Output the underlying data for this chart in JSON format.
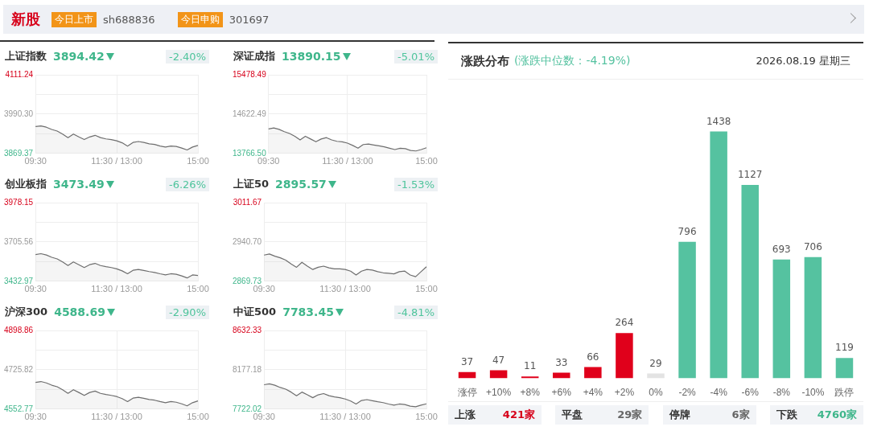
{
  "chart_data": [
    {
      "type": "other",
      "annotations": [
        "新股",
        "今日上市",
        "sh688836",
        "今日申购",
        "301697"
      ]
    },
    {
      "type": "area",
      "title": "上证指数",
      "subtitle": "3894.42",
      "annotations": [
        "-2.40%"
      ],
      "grid": true,
      "categories": [
        "09:30",
        null,
        null,
        null,
        null,
        null,
        null,
        null,
        null,
        null,
        null,
        null,
        null,
        null,
        null,
        "11:30 / 13:00",
        null,
        null,
        null,
        null,
        null,
        null,
        null,
        null,
        null,
        null,
        null,
        null,
        null,
        null,
        "15:00"
      ],
      "ylim": [
        3869.37,
        4111.24
      ],
      "yticks": [
        3869.37,
        {
          "value": 3929.84,
          "label": null
        },
        {
          "value": 3990.3,
          "label": "3990.30"
        },
        {
          "value": 4050.77,
          "label": null
        },
        4111.24
      ],
      "series": [
        {
          "color": "#6e6e6e",
          "values": [
            3952,
            3954,
            3950,
            3943,
            3938,
            3929,
            3918,
            3929,
            3920,
            3912,
            3920,
            3925,
            3918,
            3914,
            3912,
            3908,
            3902,
            3892,
            3903,
            3906,
            3903,
            3899,
            3897,
            3892,
            3889,
            3892,
            3891,
            3886,
            3880,
            3889,
            3894
          ]
        }
      ]
    },
    {
      "type": "area",
      "title": "深证成指",
      "subtitle": "13890.15",
      "annotations": [
        "-5.01%"
      ],
      "grid": true,
      "categories": [
        "09:30",
        null,
        null,
        null,
        null,
        null,
        null,
        null,
        null,
        null,
        null,
        null,
        null,
        null,
        null,
        "11:30 / 13:00",
        null,
        null,
        null,
        null,
        null,
        null,
        null,
        null,
        null,
        null,
        null,
        null,
        null,
        null,
        "15:00"
      ],
      "ylim": [
        13766.5,
        15478.49
      ],
      "yticks": [
        {
          "value": 13766.5,
          "label": "13766.50"
        },
        {
          "value": 14194.5,
          "label": null
        },
        14622.49,
        {
          "value": 15050.49,
          "label": null
        },
        15478.49
      ],
      "series": [
        {
          "color": "#6e6e6e",
          "values": [
            14300,
            14320,
            14290,
            14240,
            14200,
            14140,
            14060,
            14140,
            14080,
            14020,
            14080,
            14110,
            14060,
            14030,
            14020,
            13990,
            13940,
            13880,
            13960,
            13970,
            13950,
            13930,
            13910,
            13880,
            13850,
            13880,
            13870,
            13830,
            13820,
            13850,
            13890
          ]
        }
      ]
    },
    {
      "type": "area",
      "title": "创业板指",
      "subtitle": "3473.49",
      "annotations": [
        "-6.26%"
      ],
      "grid": true,
      "categories": [
        "09:30",
        null,
        null,
        null,
        null,
        null,
        null,
        null,
        null,
        null,
        null,
        null,
        null,
        null,
        null,
        "11:30 / 13:00",
        null,
        null,
        null,
        null,
        null,
        null,
        null,
        null,
        null,
        null,
        null,
        null,
        null,
        null,
        "15:00"
      ],
      "ylim": [
        3432.97,
        3978.15
      ],
      "yticks": [
        3432.97,
        {
          "value": 3569.27,
          "label": null
        },
        3705.56,
        {
          "value": 3841.86,
          "label": null
        },
        3978.15
      ],
      "series": [
        {
          "color": "#6e6e6e",
          "values": [
            3618,
            3624,
            3615,
            3599,
            3588,
            3567,
            3542,
            3567,
            3548,
            3528,
            3548,
            3557,
            3542,
            3534,
            3528,
            3519,
            3505,
            3485,
            3509,
            3515,
            3508,
            3500,
            3494,
            3485,
            3477,
            3485,
            3481,
            3470,
            3456,
            3477,
            3473
          ]
        }
      ]
    },
    {
      "type": "area",
      "title": "上证50",
      "subtitle": "2895.57",
      "annotations": [
        "-1.53%"
      ],
      "grid": true,
      "categories": [
        "09:30",
        null,
        null,
        null,
        null,
        null,
        null,
        null,
        null,
        null,
        null,
        null,
        null,
        null,
        null,
        "11:30 / 13:00",
        null,
        null,
        null,
        null,
        null,
        null,
        null,
        null,
        null,
        null,
        null,
        null,
        null,
        null,
        "15:00"
      ],
      "ylim": [
        2869.73,
        3011.67
      ],
      "yticks": [
        2869.73,
        {
          "value": 2905.22,
          "label": null
        },
        {
          "value": 2940.7,
          "label": "2940.70"
        },
        {
          "value": 2976.19,
          "label": null
        },
        3011.67
      ],
      "series": [
        {
          "color": "#6e6e6e",
          "values": [
            2917,
            2919,
            2915,
            2912,
            2908,
            2901,
            2895,
            2904,
            2897,
            2891,
            2895,
            2897,
            2894,
            2892,
            2892,
            2891,
            2888,
            2881,
            2888,
            2891,
            2890,
            2887,
            2885,
            2884,
            2883,
            2887,
            2888,
            2881,
            2878,
            2887,
            2896
          ]
        }
      ]
    },
    {
      "type": "area",
      "title": "沪深300",
      "subtitle": "4588.69",
      "annotations": [
        "-2.90%"
      ],
      "grid": true,
      "categories": [
        "09:30",
        null,
        null,
        null,
        null,
        null,
        null,
        null,
        null,
        null,
        null,
        null,
        null,
        null,
        null,
        "11:30 / 13:00",
        null,
        null,
        null,
        null,
        null,
        null,
        null,
        null,
        null,
        null,
        null,
        null,
        null,
        null,
        "15:00"
      ],
      "ylim": [
        4552.77,
        4898.86
      ],
      "yticks": [
        4552.77,
        {
          "value": 4639.3,
          "label": null
        },
        4725.82,
        {
          "value": 4812.34,
          "label": null
        },
        4898.86
      ],
      "series": [
        {
          "color": "#6e6e6e",
          "values": [
            4670,
            4674,
            4668,
            4658,
            4651,
            4638,
            4622,
            4638,
            4626,
            4613,
            4626,
            4632,
            4622,
            4617,
            4613,
            4608,
            4599,
            4586,
            4601,
            4605,
            4600,
            4595,
            4592,
            4586,
            4581,
            4586,
            4583,
            4576,
            4567,
            4581,
            4589
          ]
        }
      ]
    },
    {
      "type": "area",
      "title": "中证500",
      "subtitle": "7783.45",
      "annotations": [
        "-4.81%"
      ],
      "grid": true,
      "categories": [
        "09:30",
        null,
        null,
        null,
        null,
        null,
        null,
        null,
        null,
        null,
        null,
        null,
        null,
        null,
        null,
        "11:30 / 13:00",
        null,
        null,
        null,
        null,
        null,
        null,
        null,
        null,
        null,
        null,
        null,
        null,
        null,
        null,
        "15:00"
      ],
      "ylim": [
        7722.02,
        8632.33
      ],
      "yticks": [
        7722.02,
        {
          "value": 7949.6,
          "label": null
        },
        8177.18,
        {
          "value": 8404.76,
          "label": null
        },
        8632.33
      ],
      "series": [
        {
          "color": "#6e6e6e",
          "values": [
            8004,
            8014,
            7998,
            7972,
            7953,
            7919,
            7877,
            7919,
            7887,
            7854,
            7887,
            7902,
            7877,
            7864,
            7854,
            7839,
            7816,
            7781,
            7822,
            7832,
            7819,
            7807,
            7797,
            7781,
            7768,
            7781,
            7775,
            7756,
            7749,
            7768,
            7783
          ]
        }
      ]
    },
    {
      "type": "bar",
      "title": "涨跌分布",
      "subtitle": "(涨跌中位数：-4.19%)",
      "annotations": [
        "2026.08.19 星期三",
        "上涨",
        "421家",
        "平盘",
        "29家",
        "停牌",
        "6家",
        "下跌",
        "4760家"
      ],
      "data_labels": true,
      "categories": [
        "涨停",
        "+10%",
        "+8%",
        "+6%",
        "+4%",
        "+2%",
        "0%",
        "-2%",
        "-4%",
        "-6%",
        "-8%",
        "-10%",
        "跌停"
      ],
      "values": [
        37,
        47,
        11,
        33,
        66,
        264,
        29,
        796,
        1438,
        1127,
        693,
        706,
        119
      ],
      "colors": [
        "#e0001b",
        "#e0001b",
        "#e0001b",
        "#e0001b",
        "#e0001b",
        "#e0001b",
        "#e3e3e3",
        "#55c2a0",
        "#55c2a0",
        "#55c2a0",
        "#55c2a0",
        "#55c2a0",
        "#55c2a0"
      ]
    }
  ]
}
